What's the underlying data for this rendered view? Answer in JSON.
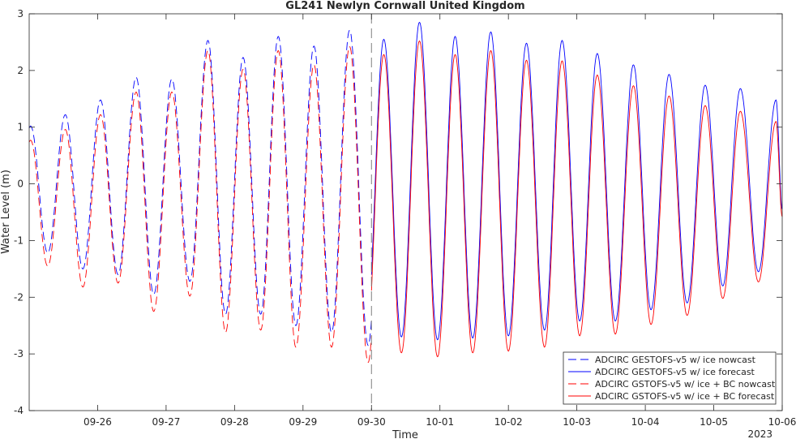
{
  "chart_data": {
    "type": "line",
    "title": "GL241 Newlyn Cornwall United Kingdom",
    "xlabel": "Time",
    "ylabel": "Water Level (m)",
    "year_label": "2023",
    "ylim": [
      -4,
      3
    ],
    "yticks": [
      -4,
      -3,
      -2,
      -1,
      0,
      1,
      2,
      3
    ],
    "xlim": [
      "2023-09-25T00:00",
      "2023-10-06T00:00"
    ],
    "xticks": [
      "09-26",
      "09-27",
      "09-28",
      "09-29",
      "09-30",
      "10-01",
      "10-02",
      "10-03",
      "10-04",
      "10-05",
      "10-06"
    ],
    "nowcast_end": "2023-09-30T00:00",
    "legend_position": "bottom-right",
    "grid": false,
    "tidal_period_hours": 12.42,
    "series": [
      {
        "name": "ADCIRC GESTOFS-v5 w/ ice nowcast",
        "color": "#0000ff",
        "style": "dashed",
        "points": [
          [
            "2023-09-25T00:30",
            1.02
          ],
          [
            "2023-09-25T06:30",
            -1.22
          ],
          [
            "2023-09-25T12:40",
            1.22
          ],
          [
            "2023-09-25T18:50",
            -1.5
          ],
          [
            "2023-09-26T01:00",
            1.48
          ],
          [
            "2023-09-26T07:10",
            -1.6
          ],
          [
            "2023-09-26T13:30",
            1.88
          ],
          [
            "2023-09-26T19:40",
            -1.95
          ],
          [
            "2023-09-27T02:00",
            1.85
          ],
          [
            "2023-09-27T08:20",
            -1.72
          ],
          [
            "2023-09-27T14:40",
            2.53
          ],
          [
            "2023-09-27T20:50",
            -2.3
          ],
          [
            "2023-09-28T03:00",
            2.23
          ],
          [
            "2023-09-28T09:10",
            -2.3
          ],
          [
            "2023-09-28T15:20",
            2.6
          ],
          [
            "2023-09-28T21:30",
            -2.5
          ],
          [
            "2023-09-29T03:50",
            2.43
          ],
          [
            "2023-09-29T10:00",
            -2.62
          ],
          [
            "2023-09-29T16:20",
            2.71
          ],
          [
            "2023-09-29T22:50",
            -2.85
          ]
        ]
      },
      {
        "name": "ADCIRC GESTOFS-v5 w/ ice forecast",
        "color": "#0000ff",
        "style": "solid",
        "points": [
          [
            "2023-09-30T04:20",
            2.55
          ],
          [
            "2023-09-30T10:30",
            -2.7
          ],
          [
            "2023-09-30T16:50",
            2.85
          ],
          [
            "2023-09-30T23:10",
            -2.75
          ],
          [
            "2023-10-01T05:20",
            2.6
          ],
          [
            "2023-10-01T11:30",
            -2.72
          ],
          [
            "2023-10-01T17:50",
            2.68
          ],
          [
            "2023-10-02T00:00",
            -2.68
          ],
          [
            "2023-10-02T06:20",
            2.48
          ],
          [
            "2023-10-02T12:40",
            -2.58
          ],
          [
            "2023-10-02T18:50",
            2.53
          ],
          [
            "2023-10-03T01:00",
            -2.42
          ],
          [
            "2023-10-03T07:10",
            2.3
          ],
          [
            "2023-10-03T13:30",
            -2.42
          ],
          [
            "2023-10-03T19:50",
            2.1
          ],
          [
            "2023-10-04T02:00",
            -2.22
          ],
          [
            "2023-10-04T08:20",
            1.93
          ],
          [
            "2023-10-04T14:40",
            -2.1
          ],
          [
            "2023-10-04T21:00",
            1.74
          ],
          [
            "2023-10-05T03:10",
            -1.8
          ],
          [
            "2023-10-05T09:20",
            1.68
          ],
          [
            "2023-10-05T15:40",
            -1.55
          ],
          [
            "2023-10-05T21:50",
            1.48
          ],
          [
            "2023-10-06T00:00",
            -0.45
          ]
        ]
      },
      {
        "name": "ADCIRC GSTOFS-v5 w/ ice + BC nowcast",
        "color": "#ff0000",
        "style": "dashed",
        "points": [
          [
            "2023-09-25T00:30",
            0.77
          ],
          [
            "2023-09-25T06:30",
            -1.45
          ],
          [
            "2023-09-25T12:40",
            0.96
          ],
          [
            "2023-09-25T18:50",
            -1.82
          ],
          [
            "2023-09-26T01:00",
            1.22
          ],
          [
            "2023-09-26T07:10",
            -1.75
          ],
          [
            "2023-09-26T13:30",
            1.62
          ],
          [
            "2023-09-26T19:40",
            -2.25
          ],
          [
            "2023-09-27T02:00",
            1.62
          ],
          [
            "2023-09-27T08:20",
            -1.98
          ],
          [
            "2023-09-27T14:40",
            2.35
          ],
          [
            "2023-09-27T20:50",
            -2.62
          ],
          [
            "2023-09-28T03:00",
            2.02
          ],
          [
            "2023-09-28T09:10",
            -2.58
          ],
          [
            "2023-09-28T15:20",
            2.35
          ],
          [
            "2023-09-28T21:30",
            -2.88
          ],
          [
            "2023-09-29T03:50",
            2.1
          ],
          [
            "2023-09-29T10:00",
            -2.88
          ],
          [
            "2023-09-29T16:20",
            2.42
          ],
          [
            "2023-09-29T22:50",
            -3.15
          ]
        ]
      },
      {
        "name": "ADCIRC GSTOFS-v5 w/ ice + BC forecast",
        "color": "#ff0000",
        "style": "solid",
        "points": [
          [
            "2023-09-30T04:20",
            2.28
          ],
          [
            "2023-09-30T10:30",
            -2.98
          ],
          [
            "2023-09-30T16:50",
            2.52
          ],
          [
            "2023-09-30T23:10",
            -3.05
          ],
          [
            "2023-10-01T05:20",
            2.28
          ],
          [
            "2023-10-01T11:30",
            -2.98
          ],
          [
            "2023-10-01T17:50",
            2.35
          ],
          [
            "2023-10-02T00:00",
            -2.95
          ],
          [
            "2023-10-02T06:20",
            2.18
          ],
          [
            "2023-10-02T12:40",
            -2.88
          ],
          [
            "2023-10-02T18:50",
            2.17
          ],
          [
            "2023-10-03T01:00",
            -2.68
          ],
          [
            "2023-10-03T07:10",
            1.92
          ],
          [
            "2023-10-03T13:30",
            -2.65
          ],
          [
            "2023-10-03T19:50",
            1.73
          ],
          [
            "2023-10-04T02:00",
            -2.48
          ],
          [
            "2023-10-04T08:20",
            1.55
          ],
          [
            "2023-10-04T14:40",
            -2.32
          ],
          [
            "2023-10-04T21:00",
            1.38
          ],
          [
            "2023-10-05T03:10",
            -2.02
          ],
          [
            "2023-10-05T09:20",
            1.28
          ],
          [
            "2023-10-05T15:40",
            -1.73
          ],
          [
            "2023-10-05T21:50",
            1.1
          ],
          [
            "2023-10-06T00:00",
            -0.58
          ]
        ]
      }
    ]
  }
}
